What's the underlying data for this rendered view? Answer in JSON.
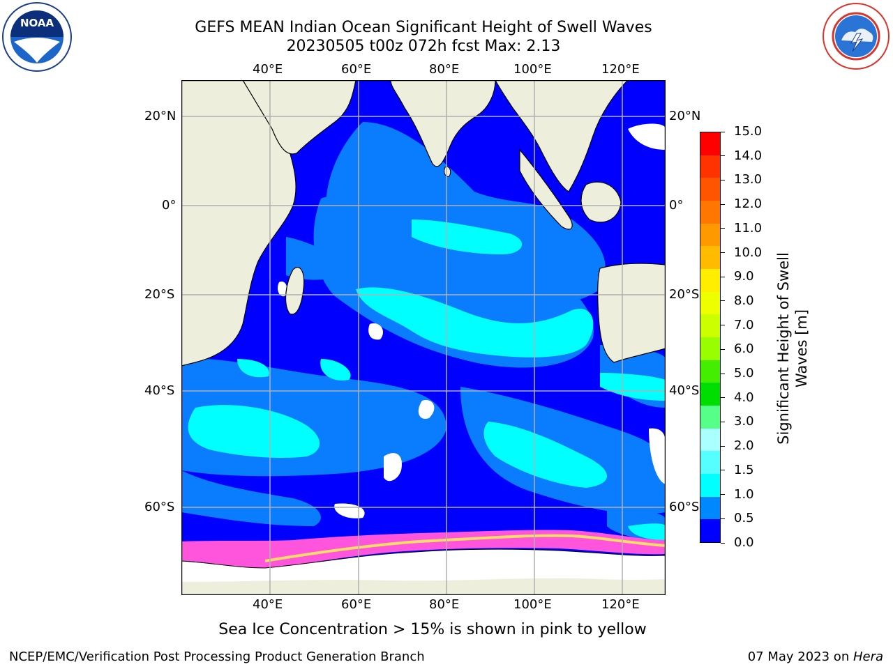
{
  "title": {
    "line1": "GEFS MEAN Indian Ocean Significant Height of Swell Waves",
    "line2": "20230505 t00z 072h fcst   Max: 2.13"
  },
  "axes": {
    "lon_ticks": [
      "40°E",
      "60°E",
      "80°E",
      "100°E",
      "120°E"
    ],
    "lat_ticks": [
      "20°N",
      "0°",
      "20°S",
      "40°S",
      "60°S"
    ]
  },
  "colorbar": {
    "label_line1": "Significant Height of Swell",
    "label_line2": "Waves [m]",
    "ticks": [
      "15.0",
      "14.0",
      "13.0",
      "12.0",
      "11.0",
      "10.0",
      "9.0",
      "8.0",
      "7.0",
      "6.0",
      "5.0",
      "4.0",
      "3.0",
      "2.0",
      "1.5",
      "1.0",
      "0.5",
      "0.0"
    ],
    "colors": [
      "#ff0000",
      "#ff3300",
      "#ff5500",
      "#ff7700",
      "#ff9900",
      "#ffbb00",
      "#ffee00",
      "#eeff00",
      "#ccff00",
      "#99ff00",
      "#44ee00",
      "#00dd00",
      "#55ff88",
      "#aaffff",
      "#55ffff",
      "#00ffff",
      "#0088ff",
      "#0000ff"
    ]
  },
  "caption": "Sea Ice Concentration > 15% is shown in pink to yellow",
  "footer": {
    "left": "NCEP/EMC/Verification Post Processing Product Generation Branch",
    "date": "07 May 2023 on ",
    "machine": "Hera"
  },
  "colors": {
    "land": "#eeeedc",
    "grid": "#b0b0b0",
    "ocean_low": "#0000ff",
    "ocean_mid": "#0a7dff",
    "ocean_high": "#00ffff",
    "ice_pink": "#ff55dd",
    "ice_yellow": "#ffdd66"
  },
  "logos": {
    "left": "NOAA",
    "right": "NATIONAL WEATHER SERVICE"
  }
}
